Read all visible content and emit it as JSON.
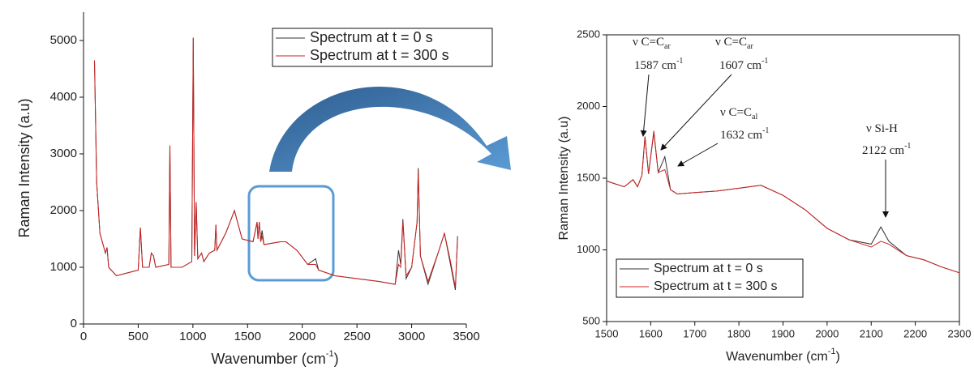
{
  "chart_data": [
    {
      "type": "line",
      "ylabel": [
        "Raman Intensity (a.u)"
      ],
      "xlabel": [
        "Wavenumber (cm",
        "-1",
        ")"
      ],
      "xlim": [
        0,
        3500
      ],
      "ylim": [
        0,
        5500
      ],
      "xticks": [
        0,
        500,
        1000,
        1500,
        2000,
        2500,
        3000,
        3500
      ],
      "yticks": [
        0,
        1000,
        2000,
        3000,
        4000,
        5000
      ],
      "spines": "left-bottom",
      "legend": "upper right",
      "x": [
        100,
        120,
        150,
        200,
        215,
        230,
        300,
        400,
        500,
        520,
        540,
        600,
        620,
        640,
        660,
        780,
        790,
        800,
        900,
        990,
        1003,
        1015,
        1030,
        1045,
        1080,
        1100,
        1150,
        1200,
        1210,
        1220,
        1300,
        1380,
        1450,
        1550,
        1587,
        1595,
        1607,
        1620,
        1632,
        1650,
        1800,
        1850,
        1950,
        2050,
        2122,
        2150,
        2300,
        2500,
        2700,
        2850,
        2880,
        2900,
        2920,
        2950,
        3000,
        3050,
        3060,
        3080,
        3150,
        3250,
        3300,
        3350,
        3400,
        3420
      ],
      "series": [
        {
          "name": "Spectrum at t = 0 s",
          "color": "#333333",
          "values": [
            4650,
            2500,
            1600,
            1250,
            1350,
            1000,
            850,
            900,
            950,
            1700,
            1000,
            1000,
            1250,
            1200,
            1000,
            1050,
            3150,
            1000,
            1000,
            1100,
            5050,
            1200,
            2150,
            1150,
            1250,
            1100,
            1250,
            1300,
            1750,
            1300,
            1600,
            2000,
            1500,
            1450,
            1800,
            1500,
            1800,
            1450,
            1650,
            1400,
            1450,
            1450,
            1300,
            1050,
            1150,
            950,
            850,
            800,
            750,
            700,
            1300,
            1050,
            1850,
            800,
            1000,
            1800,
            2750,
            1200,
            700,
            1300,
            1600,
            1100,
            600,
            1550
          ]
        },
        {
          "name": "Spectrum at  t = 300 s",
          "color": "#cc2222",
          "values": [
            4650,
            2500,
            1600,
            1250,
            1350,
            1000,
            850,
            900,
            950,
            1700,
            1000,
            1000,
            1250,
            1200,
            1000,
            1050,
            3150,
            1000,
            1000,
            1100,
            5050,
            1200,
            2150,
            1150,
            1250,
            1100,
            1250,
            1300,
            1750,
            1300,
            1600,
            2000,
            1500,
            1450,
            1800,
            1500,
            1800,
            1450,
            1550,
            1400,
            1450,
            1450,
            1300,
            1050,
            1050,
            950,
            850,
            800,
            750,
            700,
            1050,
            1000,
            1800,
            850,
            1000,
            1800,
            2700,
            1200,
            750,
            1300,
            1600,
            1150,
            650,
            1500
          ]
        }
      ]
    },
    {
      "type": "line",
      "ylabel": [
        "Raman Intensity (a.u)"
      ],
      "xlabel": [
        "Wavenumber (cm",
        "-1",
        ")"
      ],
      "xlim": [
        1500,
        2300
      ],
      "ylim": [
        500,
        2500
      ],
      "xticks": [
        1500,
        1600,
        1700,
        1800,
        1900,
        2000,
        2100,
        2200,
        2300
      ],
      "yticks": [
        500,
        1000,
        1500,
        2000,
        2500
      ],
      "spines": "all",
      "legend": "lower left",
      "x": [
        1500,
        1520,
        1540,
        1560,
        1570,
        1580,
        1587,
        1595,
        1607,
        1617,
        1632,
        1645,
        1660,
        1700,
        1750,
        1800,
        1850,
        1900,
        1950,
        2000,
        2050,
        2100,
        2122,
        2140,
        2180,
        2220,
        2260,
        2300
      ],
      "series": [
        {
          "name": "Spectrum at t = 0 s",
          "color": "#333333",
          "values": [
            1480,
            1460,
            1440,
            1490,
            1440,
            1520,
            1790,
            1530,
            1820,
            1540,
            1650,
            1420,
            1390,
            1400,
            1410,
            1430,
            1450,
            1380,
            1280,
            1150,
            1070,
            1040,
            1160,
            1060,
            960,
            930,
            880,
            840
          ]
        },
        {
          "name": "Spectrum at  t = 300 s",
          "color": "#cc2222",
          "values": [
            1480,
            1460,
            1440,
            1490,
            1440,
            1520,
            1790,
            1530,
            1830,
            1540,
            1560,
            1420,
            1390,
            1400,
            1410,
            1430,
            1450,
            1380,
            1280,
            1150,
            1070,
            1020,
            1060,
            1040,
            960,
            930,
            880,
            840
          ]
        }
      ],
      "annotations": [
        {
          "label": "ν C=C",
          "sub": "ar",
          "wavenumber": "1587 cm",
          "sup": "-1"
        },
        {
          "label": "ν C=C",
          "sub": "ar",
          "wavenumber": "1607 cm",
          "sup": "-1"
        },
        {
          "label": "ν C=C",
          "sub": "al",
          "wavenumber": "1632 cm",
          "sup": "-1"
        },
        {
          "label": "ν Si-H",
          "wavenumber": "2122 cm",
          "sup": "-1"
        }
      ]
    }
  ]
}
